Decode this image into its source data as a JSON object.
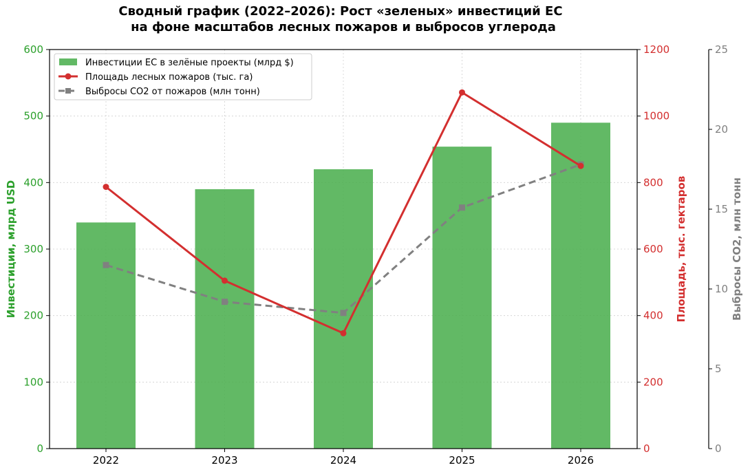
{
  "chart_data": {
    "type": "bar",
    "title_line1": "Сводный график (2022–2026): Рост «зеленых» инвестиций ЕС",
    "title_line2": "на фоне масштабов лесных пожаров и выбросов углерода",
    "categories": [
      "2022",
      "2023",
      "2024",
      "2025",
      "2026"
    ],
    "series": [
      {
        "name": "Инвестиции ЕС в зелёные проекты (млрд $)",
        "kind": "bar",
        "axis": "left",
        "color": "#4caf50",
        "values": [
          340,
          390,
          420,
          454,
          490
        ]
      },
      {
        "name": "Площадь лесных пожаров (тыс. га)",
        "kind": "line",
        "axis": "right1",
        "color": "#d32f2f",
        "marker": "circle",
        "values": [
          787,
          505,
          347,
          1071,
          850
        ]
      },
      {
        "name": "Выбросы CO2 от пожаров (млн тонн)",
        "kind": "line-dashed",
        "axis": "right2",
        "color": "#808080",
        "marker": "square",
        "values": [
          11.5,
          9.2,
          8.5,
          15.1,
          17.8
        ]
      }
    ],
    "axes": {
      "left": {
        "label": "Инвестиции, млрд USD",
        "ylim": [
          0,
          600
        ],
        "ticks": [
          0,
          100,
          200,
          300,
          400,
          500,
          600
        ],
        "color": "#2ca02c"
      },
      "right1": {
        "label": "Площадь, тыс. гектаров",
        "ylim": [
          0,
          1200
        ],
        "ticks": [
          0,
          200,
          400,
          600,
          800,
          1000,
          1200
        ],
        "color": "#d32f2f"
      },
      "right2": {
        "label": "Выбросы CO2, млн тонн",
        "ylim": [
          0,
          25
        ],
        "ticks": [
          0,
          5,
          10,
          15,
          20,
          25
        ],
        "color": "#808080"
      }
    },
    "grid": true,
    "legend_position": "top-left"
  }
}
